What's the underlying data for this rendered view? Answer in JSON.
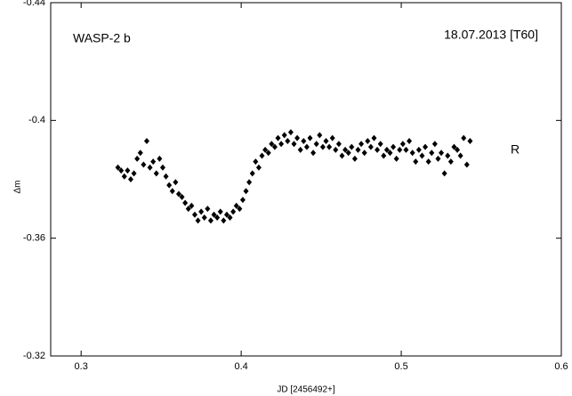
{
  "chart_data": {
    "type": "scatter",
    "annotations": [
      "WASP-2 b",
      "18.07.2013 [T60]",
      "R"
    ],
    "xlabel": "JD [2456492+]",
    "ylabel": "Δm",
    "xlim": [
      0.281,
      0.6
    ],
    "ylim": [
      -0.44,
      -0.32
    ],
    "y_inverted": true,
    "xticks": [
      0.3,
      0.4,
      0.5,
      0.6
    ],
    "yticks": [
      -0.44,
      -0.4,
      -0.36,
      -0.32
    ],
    "color": "#000000",
    "x": [
      0.323,
      0.325,
      0.327,
      0.329,
      0.331,
      0.333,
      0.335,
      0.337,
      0.339,
      0.341,
      0.343,
      0.345,
      0.347,
      0.349,
      0.351,
      0.353,
      0.355,
      0.357,
      0.359,
      0.361,
      0.363,
      0.365,
      0.367,
      0.369,
      0.371,
      0.373,
      0.375,
      0.377,
      0.379,
      0.381,
      0.383,
      0.385,
      0.387,
      0.389,
      0.391,
      0.393,
      0.395,
      0.397,
      0.399,
      0.401,
      0.403,
      0.405,
      0.407,
      0.409,
      0.411,
      0.413,
      0.415,
      0.417,
      0.419,
      0.421,
      0.423,
      0.425,
      0.427,
      0.429,
      0.431,
      0.433,
      0.435,
      0.437,
      0.439,
      0.441,
      0.443,
      0.445,
      0.447,
      0.449,
      0.451,
      0.453,
      0.455,
      0.457,
      0.459,
      0.461,
      0.463,
      0.465,
      0.467,
      0.469,
      0.471,
      0.473,
      0.475,
      0.477,
      0.479,
      0.481,
      0.483,
      0.485,
      0.487,
      0.489,
      0.491,
      0.493,
      0.495,
      0.497,
      0.499,
      0.501,
      0.503,
      0.505,
      0.507,
      0.509,
      0.511,
      0.513,
      0.515,
      0.517,
      0.519,
      0.521,
      0.523,
      0.525,
      0.527,
      0.529,
      0.531,
      0.533,
      0.535,
      0.537,
      0.539,
      0.541,
      0.543
    ],
    "values": [
      -0.384,
      -0.383,
      -0.381,
      -0.383,
      -0.38,
      -0.382,
      -0.387,
      -0.389,
      -0.385,
      -0.393,
      -0.384,
      -0.386,
      -0.382,
      -0.387,
      -0.384,
      -0.381,
      -0.378,
      -0.376,
      -0.379,
      -0.375,
      -0.374,
      -0.372,
      -0.37,
      -0.371,
      -0.368,
      -0.366,
      -0.369,
      -0.367,
      -0.37,
      -0.366,
      -0.368,
      -0.367,
      -0.369,
      -0.366,
      -0.368,
      -0.367,
      -0.369,
      -0.371,
      -0.37,
      -0.373,
      -0.376,
      -0.379,
      -0.382,
      -0.386,
      -0.384,
      -0.388,
      -0.39,
      -0.389,
      -0.392,
      -0.391,
      -0.394,
      -0.392,
      -0.395,
      -0.393,
      -0.396,
      -0.392,
      -0.394,
      -0.39,
      -0.393,
      -0.391,
      -0.394,
      -0.389,
      -0.392,
      -0.395,
      -0.391,
      -0.393,
      -0.391,
      -0.394,
      -0.39,
      -0.392,
      -0.388,
      -0.39,
      -0.389,
      -0.391,
      -0.387,
      -0.39,
      -0.392,
      -0.389,
      -0.393,
      -0.391,
      -0.394,
      -0.39,
      -0.392,
      -0.388,
      -0.39,
      -0.389,
      -0.391,
      -0.387,
      -0.39,
      -0.392,
      -0.39,
      -0.393,
      -0.389,
      -0.386,
      -0.39,
      -0.388,
      -0.391,
      -0.386,
      -0.389,
      -0.392,
      -0.387,
      -0.389,
      -0.382,
      -0.388,
      -0.386,
      -0.391,
      -0.39,
      -0.388,
      -0.394,
      -0.385,
      -0.393
    ]
  }
}
